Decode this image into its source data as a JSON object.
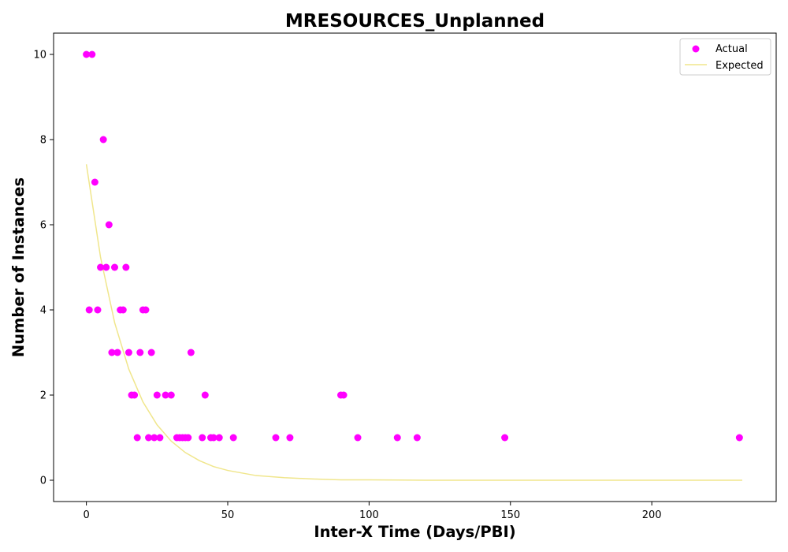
{
  "chart_data": {
    "type": "scatter",
    "title": "MRESOURCES_Unplanned",
    "xlabel": "Inter-X Time (Days/PBI)",
    "ylabel": "Number of Instances",
    "xlim": [
      -11.6,
      244
    ],
    "ylim": [
      -0.5,
      10.5
    ],
    "xticks": [
      0,
      50,
      100,
      150,
      200
    ],
    "yticks": [
      0,
      2,
      4,
      6,
      8,
      10
    ],
    "grid": false,
    "legend_position": "top-right",
    "series": [
      {
        "name": "Actual",
        "kind": "scatter",
        "color": "#ff00ff",
        "points": [
          [
            0,
            10
          ],
          [
            2,
            10
          ],
          [
            1,
            4
          ],
          [
            3,
            7
          ],
          [
            4,
            4
          ],
          [
            5,
            5
          ],
          [
            6,
            8
          ],
          [
            7,
            5
          ],
          [
            8,
            6
          ],
          [
            9,
            3
          ],
          [
            10,
            5
          ],
          [
            11,
            3
          ],
          [
            12,
            4
          ],
          [
            13,
            4
          ],
          [
            14,
            5
          ],
          [
            15,
            3
          ],
          [
            16,
            2
          ],
          [
            17,
            2
          ],
          [
            18,
            1
          ],
          [
            19,
            3
          ],
          [
            20,
            4
          ],
          [
            21,
            4
          ],
          [
            22,
            1
          ],
          [
            23,
            3
          ],
          [
            24,
            1
          ],
          [
            25,
            2
          ],
          [
            26,
            1
          ],
          [
            28,
            2
          ],
          [
            30,
            2
          ],
          [
            32,
            1
          ],
          [
            33,
            1
          ],
          [
            34,
            1
          ],
          [
            35,
            1
          ],
          [
            36,
            1
          ],
          [
            37,
            3
          ],
          [
            41,
            1
          ],
          [
            42,
            2
          ],
          [
            44,
            1
          ],
          [
            45,
            1
          ],
          [
            47,
            1
          ],
          [
            52,
            1
          ],
          [
            67,
            1
          ],
          [
            72,
            1
          ],
          [
            90,
            2
          ],
          [
            91,
            2
          ],
          [
            96,
            1
          ],
          [
            110,
            1
          ],
          [
            117,
            1
          ],
          [
            148,
            1
          ],
          [
            231,
            1
          ]
        ]
      },
      {
        "name": "Expected",
        "kind": "line",
        "color": "#f0e68c",
        "points": [
          [
            0,
            7.42
          ],
          [
            5,
            5.24
          ],
          [
            10,
            3.7
          ],
          [
            15,
            2.61
          ],
          [
            20,
            1.84
          ],
          [
            25,
            1.3
          ],
          [
            30,
            0.92
          ],
          [
            35,
            0.65
          ],
          [
            40,
            0.46
          ],
          [
            45,
            0.32
          ],
          [
            50,
            0.23
          ],
          [
            60,
            0.11
          ],
          [
            70,
            0.06
          ],
          [
            80,
            0.03
          ],
          [
            90,
            0.01
          ],
          [
            100,
            0.01
          ],
          [
            120,
            0.0
          ],
          [
            150,
            0.0
          ],
          [
            200,
            0.0
          ],
          [
            232,
            0.0
          ]
        ]
      }
    ]
  }
}
